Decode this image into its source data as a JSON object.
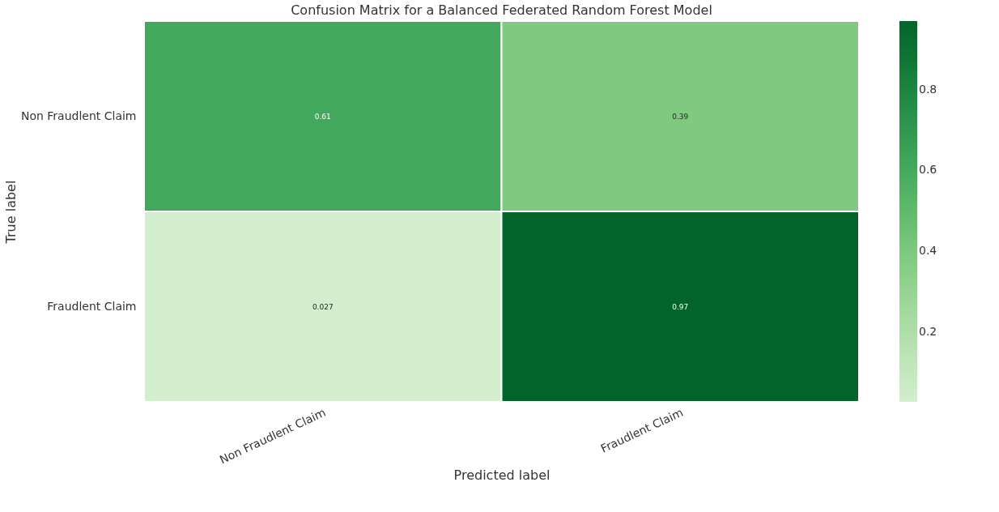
{
  "chart_data": {
    "type": "heatmap",
    "title": "Confusion Matrix for a Balanced Federated Random Forest Model",
    "xlabel": "Predicted label",
    "ylabel": "True label",
    "categories": [
      "Non Fraudlent Claim",
      "Fraudlent Claim"
    ],
    "y_categories": [
      "Non Fraudlent Claim",
      "Fraudlent Claim"
    ],
    "cells": [
      [
        0.61,
        0.39
      ],
      [
        0.027,
        0.97
      ]
    ],
    "data_labels": true,
    "clim": [
      0.027,
      0.97
    ],
    "cticks": [
      0.2,
      0.4,
      0.6,
      0.8
    ],
    "grid": false
  }
}
